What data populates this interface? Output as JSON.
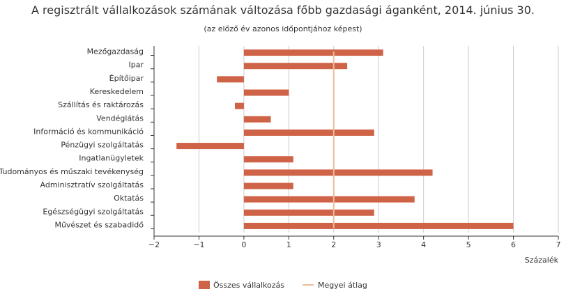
{
  "colors": {
    "bar": "#cf6347",
    "average_line": "#eebb99",
    "grid": "#cccccc",
    "axis": "#333333"
  },
  "chart_data": {
    "type": "bar",
    "orientation": "horizontal",
    "title": "A regisztrált vállalkozások számának változása főbb gazdasági áganként, 2014. június 30.",
    "subtitle": "(az előző év azonos időpontjához képest)",
    "xlabel": "Százalék",
    "ylabel": "",
    "xlim": [
      -2,
      7
    ],
    "xticks": [
      -2,
      -1,
      0,
      1,
      2,
      3,
      4,
      5,
      6,
      7
    ],
    "xtick_labels": [
      "−2",
      "−1",
      "0",
      "1",
      "2",
      "3",
      "4",
      "5",
      "6",
      "7"
    ],
    "grid": true,
    "legend_position": "bottom-center",
    "categories": [
      "Mezőgazdaság",
      "Ipar",
      "Építőipar",
      "Kereskedelem",
      "Szállítás és raktározás",
      "Vendéglátás",
      "Információ és kommunikáció",
      "Pénzügyi szolgáltatás",
      "Ingatlanügyletek",
      "Tudományos és műszaki tevékenység",
      "Adminisztratív szolgáltatás",
      "Oktatás",
      "Egészségügyi szolgáltatás",
      "Művészet és szabadidő"
    ],
    "series": [
      {
        "name": "Összes vállalkozás",
        "values": [
          3.1,
          2.3,
          -0.6,
          1.0,
          -0.2,
          0.6,
          2.9,
          -1.5,
          1.1,
          4.2,
          1.1,
          3.8,
          2.9,
          6.0
        ]
      }
    ],
    "average_line": {
      "name": "Megyei átlag",
      "value": 2.0
    }
  }
}
